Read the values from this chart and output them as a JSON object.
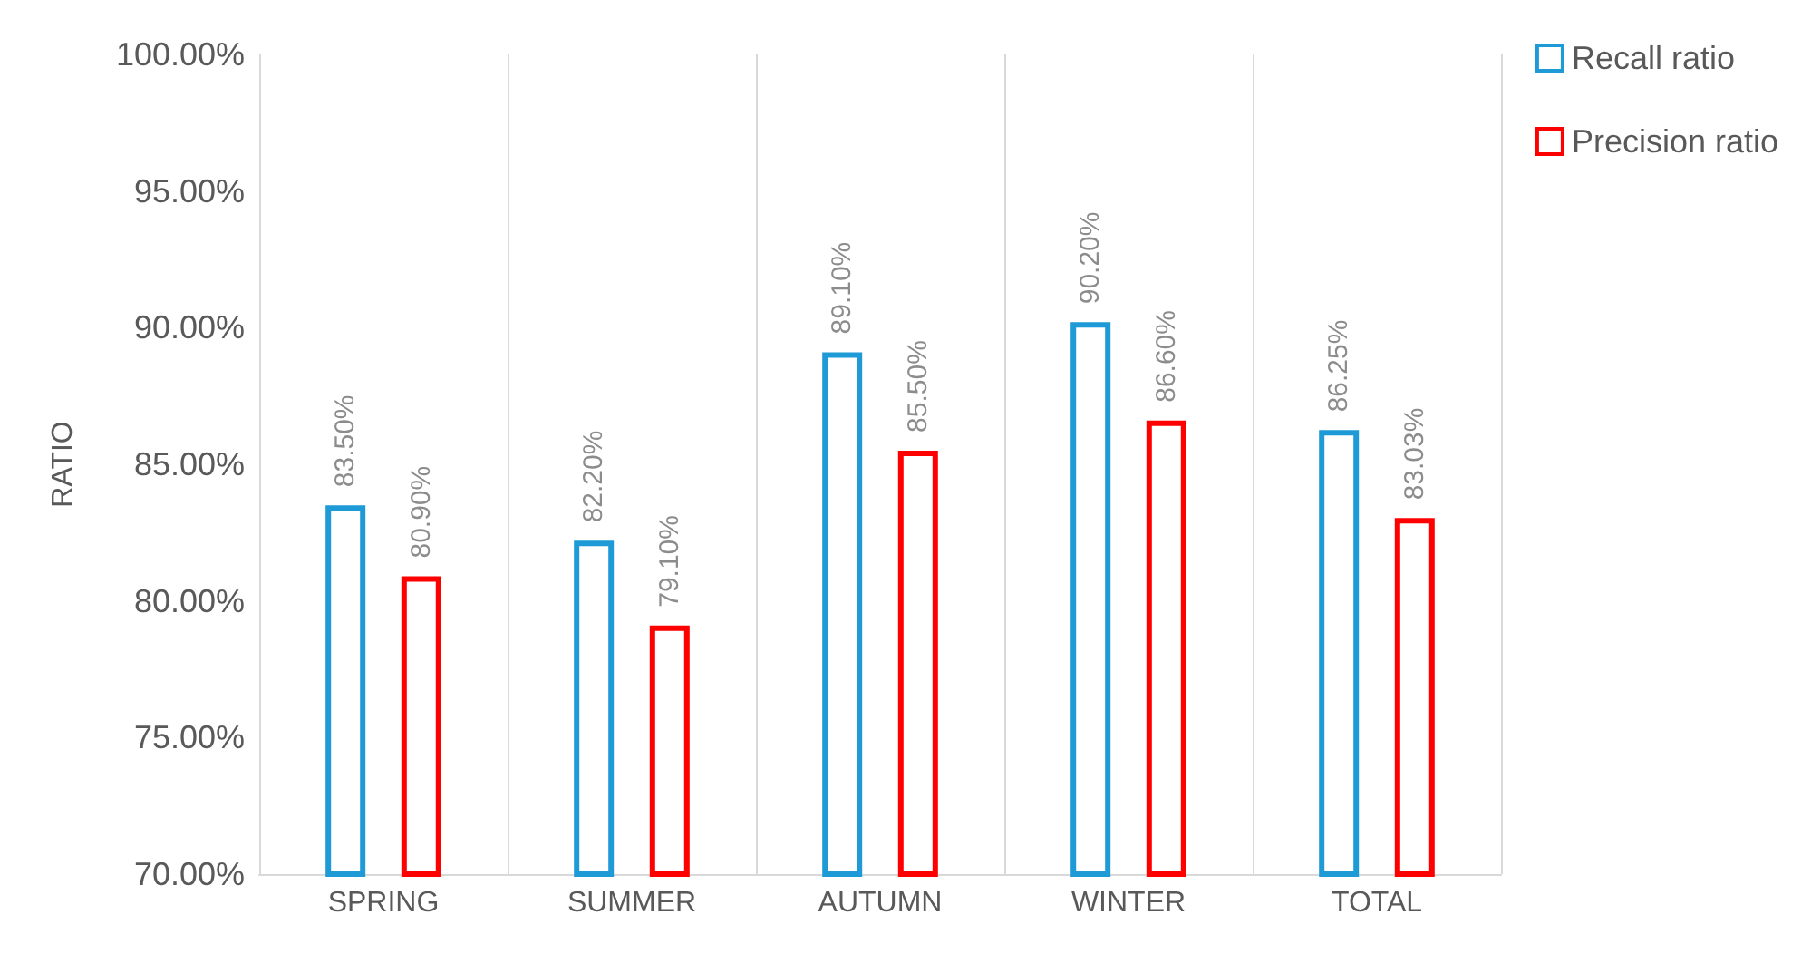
{
  "chart_data": {
    "type": "bar",
    "ylabel": "RATIO",
    "categories": [
      "SPRING",
      "SUMMER",
      "AUTUMN",
      "WINTER",
      "TOTAL"
    ],
    "series": [
      {
        "name": "Recall ratio",
        "color": "#1e9ad6",
        "values": [
          83.5,
          82.2,
          89.1,
          90.2,
          86.25
        ],
        "value_labels": [
          "83.50%",
          "82.20%",
          "89.10%",
          "90.20%",
          "86.25%"
        ]
      },
      {
        "name": "Precision ratio",
        "color": "#ff0000",
        "values": [
          80.9,
          79.1,
          85.5,
          86.6,
          83.03
        ],
        "value_labels": [
          "80.90%",
          "79.10%",
          "85.50%",
          "86.60%",
          "83.03%"
        ]
      }
    ],
    "ylim": [
      70,
      100
    ],
    "yticks": [
      {
        "value": 70,
        "label": "70.00%"
      },
      {
        "value": 75,
        "label": "75.00%"
      },
      {
        "value": 80,
        "label": "80.00%"
      },
      {
        "value": 85,
        "label": "85.00%"
      },
      {
        "value": 90,
        "label": "90.00%"
      },
      {
        "value": 95,
        "label": "95.00%"
      },
      {
        "value": 100,
        "label": "100.00%"
      }
    ],
    "grid": "x",
    "legend": "top right"
  }
}
